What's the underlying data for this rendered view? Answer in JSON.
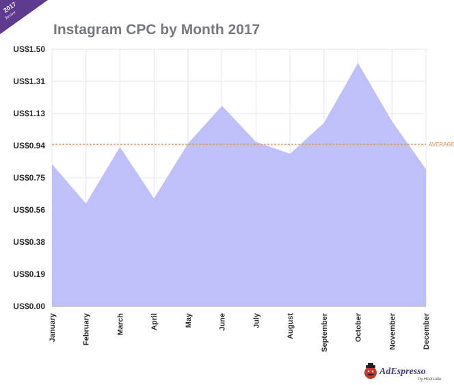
{
  "badge": {
    "year": "2017",
    "word": "Review"
  },
  "chart_data": {
    "type": "area",
    "title": "Instagram CPC by Month 2017",
    "xlabel": "",
    "ylabel": "",
    "categories": [
      "January",
      "February",
      "March",
      "April",
      "May",
      "June",
      "July",
      "August",
      "September",
      "October",
      "November",
      "December"
    ],
    "series": [
      {
        "values": [
          0.83,
          0.6,
          0.93,
          0.63,
          0.95,
          1.17,
          0.96,
          0.89,
          1.07,
          1.42,
          1.08,
          0.8
        ]
      }
    ],
    "y_ticks": [
      "US$0.00",
      "US$0.19",
      "US$0.38",
      "US$0.56",
      "US$0.75",
      "US$0.94",
      "US$1.13",
      "US$1.31",
      "US$1.50"
    ],
    "ylim": [
      0,
      1.5
    ],
    "average": {
      "label": "AVERAGE",
      "value": 0.945
    },
    "grid": true,
    "fill_color": "#bcbdfa",
    "average_color": "#e08a4e"
  },
  "brand": {
    "name": "AdEspresso",
    "byline": "by Hootsuite"
  }
}
